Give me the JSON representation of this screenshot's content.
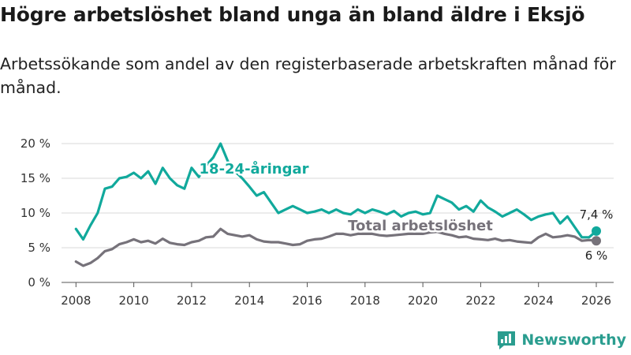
{
  "title": "Högre arbetslöshet bland unga än bland äldre i Eksjö",
  "subtitle": "Arbetssökande som andel av den registerbaserade arbetskraften månad för månad.",
  "brand": {
    "name": "Newsworthy",
    "logo_icon": "bar-chart-speech-bubble-icon",
    "color": "#2a9d8f"
  },
  "chart_data": {
    "type": "line",
    "title": "",
    "xlabel": "",
    "ylabel": "",
    "ylim": [
      0,
      20
    ],
    "xlim": [
      2007.5,
      2026.6
    ],
    "grid": true,
    "y_ticks": [
      0,
      5,
      10,
      15,
      20
    ],
    "y_tick_labels": [
      "0 %",
      "5 %",
      "10 %",
      "15 %",
      "20 %"
    ],
    "x_ticks": [
      2008,
      2010,
      2012,
      2014,
      2016,
      2018,
      2020,
      2022,
      2024,
      2026
    ],
    "x_tick_labels": [
      "2008",
      "2010",
      "2012",
      "2014",
      "2016",
      "2018",
      "2020",
      "2022",
      "2024",
      "2026"
    ],
    "series": [
      {
        "name": "18-24-åringar",
        "color": "#11a99c",
        "x": [
          2008.0,
          2008.25,
          2008.5,
          2008.75,
          2009.0,
          2009.25,
          2009.5,
          2009.75,
          2010.0,
          2010.25,
          2010.5,
          2010.75,
          2011.0,
          2011.25,
          2011.5,
          2011.75,
          2012.0,
          2012.25,
          2012.5,
          2012.75,
          2013.0,
          2013.25,
          2013.5,
          2013.75,
          2014.0,
          2014.25,
          2014.5,
          2014.75,
          2015.0,
          2015.25,
          2015.5,
          2015.75,
          2016.0,
          2016.25,
          2016.5,
          2016.75,
          2017.0,
          2017.25,
          2017.5,
          2017.75,
          2018.0,
          2018.25,
          2018.5,
          2018.75,
          2019.0,
          2019.25,
          2019.5,
          2019.75,
          2020.0,
          2020.25,
          2020.5,
          2020.75,
          2021.0,
          2021.25,
          2021.5,
          2021.75,
          2022.0,
          2022.25,
          2022.5,
          2022.75,
          2023.0,
          2023.25,
          2023.5,
          2023.75,
          2024.0,
          2024.25,
          2024.5,
          2024.75,
          2025.0,
          2025.25,
          2025.5,
          2025.75,
          2026.0
        ],
        "values": [
          7.7,
          6.2,
          8.2,
          10.0,
          13.5,
          13.8,
          15.0,
          15.2,
          15.8,
          15.0,
          16.0,
          14.2,
          16.5,
          15.0,
          14.0,
          13.5,
          16.5,
          15.2,
          16.8,
          18.0,
          20.0,
          17.5,
          16.0,
          15.0,
          13.8,
          12.5,
          13.0,
          11.5,
          10.0,
          10.5,
          11.0,
          10.5,
          10.0,
          10.2,
          10.5,
          10.0,
          10.5,
          10.0,
          9.8,
          10.5,
          10.0,
          10.5,
          10.2,
          9.8,
          10.3,
          9.5,
          10.0,
          10.2,
          9.8,
          10.0,
          12.5,
          12.0,
          11.5,
          10.5,
          11.0,
          10.2,
          11.8,
          10.8,
          10.2,
          9.5,
          10.0,
          10.5,
          9.8,
          9.0,
          9.5,
          9.8,
          10.0,
          8.5,
          9.5,
          8.0,
          6.5,
          6.5,
          7.4
        ],
        "end_label": "7,4 %"
      },
      {
        "name": "Total arbetslöshet",
        "color": "#76727a",
        "x": [
          2008.0,
          2008.25,
          2008.5,
          2008.75,
          2009.0,
          2009.25,
          2009.5,
          2009.75,
          2010.0,
          2010.25,
          2010.5,
          2010.75,
          2011.0,
          2011.25,
          2011.5,
          2011.75,
          2012.0,
          2012.25,
          2012.5,
          2012.75,
          2013.0,
          2013.25,
          2013.5,
          2013.75,
          2014.0,
          2014.25,
          2014.5,
          2014.75,
          2015.0,
          2015.25,
          2015.5,
          2015.75,
          2016.0,
          2016.25,
          2016.5,
          2016.75,
          2017.0,
          2017.25,
          2017.5,
          2017.75,
          2018.0,
          2018.25,
          2018.5,
          2018.75,
          2019.0,
          2019.25,
          2019.5,
          2019.75,
          2020.0,
          2020.25,
          2020.5,
          2020.75,
          2021.0,
          2021.25,
          2021.5,
          2021.75,
          2022.0,
          2022.25,
          2022.5,
          2022.75,
          2023.0,
          2023.25,
          2023.5,
          2023.75,
          2024.0,
          2024.25,
          2024.5,
          2024.75,
          2025.0,
          2025.25,
          2025.5,
          2025.75,
          2026.0
        ],
        "values": [
          3.0,
          2.4,
          2.8,
          3.5,
          4.5,
          4.8,
          5.5,
          5.8,
          6.2,
          5.8,
          6.0,
          5.6,
          6.3,
          5.7,
          5.5,
          5.4,
          5.8,
          6.0,
          6.5,
          6.6,
          7.7,
          7.0,
          6.8,
          6.6,
          6.8,
          6.2,
          5.9,
          5.8,
          5.8,
          5.6,
          5.4,
          5.5,
          6.0,
          6.2,
          6.3,
          6.6,
          7.0,
          7.0,
          6.8,
          7.0,
          7.0,
          7.0,
          6.8,
          6.7,
          6.8,
          6.9,
          7.0,
          7.0,
          7.0,
          7.2,
          7.3,
          7.0,
          6.8,
          6.5,
          6.6,
          6.3,
          6.2,
          6.1,
          6.3,
          6.0,
          6.1,
          5.9,
          5.8,
          5.7,
          6.5,
          7.0,
          6.5,
          6.6,
          6.8,
          6.6,
          6.0,
          6.1,
          6.0
        ],
        "end_label": "6 %"
      }
    ],
    "annotations": [
      {
        "text": "18-24-åringar",
        "series": "18-24-åringar"
      },
      {
        "text": "Total arbetslöshet",
        "series": "Total arbetslöshet"
      }
    ]
  }
}
